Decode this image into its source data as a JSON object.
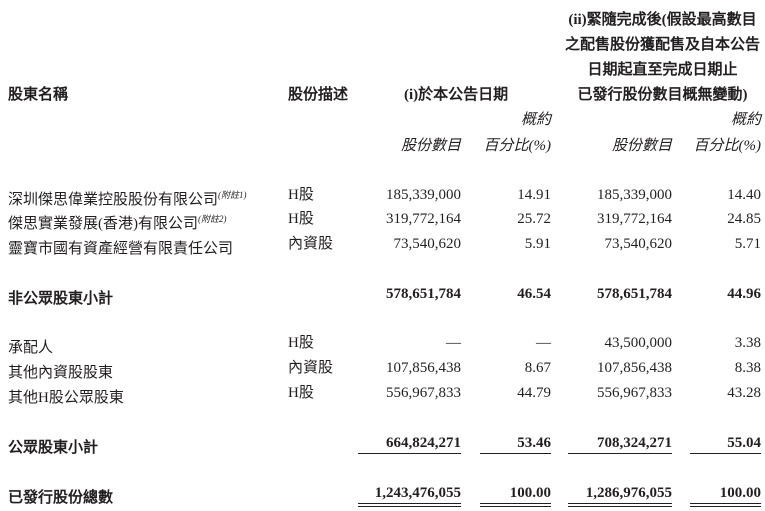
{
  "header": {
    "col_name": "股東名稱",
    "col_type": "股份描述",
    "group_i": "(i)於本公告日期",
    "group_ii_lines": [
      "(ii)緊隨完成後(假設最高數目",
      "之配售股份獲配售及自本公告",
      "日期起直至完成日期止",
      "已發行股份數目概無變動)"
    ],
    "approx": "概約",
    "shares": "股份數目",
    "percent": "百分比(%)"
  },
  "rows": [
    {
      "name": "深圳傑思偉業控股股份有限公司",
      "note": "(附註1)",
      "type": "H股",
      "shares_i": "185,339,000",
      "pct_i": "14.91",
      "shares_ii": "185,339,000",
      "pct_ii": "14.40"
    },
    {
      "name": "傑思實業發展(香港)有限公司",
      "note": "(附註2)",
      "type": "H股",
      "shares_i": "319,772,164",
      "pct_i": "25.72",
      "shares_ii": "319,772,164",
      "pct_ii": "24.85"
    },
    {
      "name": "靈寶市國有資產經營有限責任公司",
      "note": "",
      "type": "內資股",
      "shares_i": "73,540,620",
      "pct_i": "5.91",
      "shares_ii": "73,540,620",
      "pct_ii": "5.71"
    },
    {
      "name": "非公眾股東小計",
      "note": "",
      "type": "",
      "shares_i": "578,651,784",
      "pct_i": "46.54",
      "shares_ii": "578,651,784",
      "pct_ii": "44.96"
    },
    {
      "name": "承配人",
      "note": "",
      "type": "H股",
      "shares_i": "—",
      "pct_i": "—",
      "shares_ii": "43,500,000",
      "pct_ii": "3.38"
    },
    {
      "name": "其他內資股股東",
      "note": "",
      "type": "內資股",
      "shares_i": "107,856,438",
      "pct_i": "8.67",
      "shares_ii": "107,856,438",
      "pct_ii": "8.38"
    },
    {
      "name": "其他H股公眾股東",
      "note": "",
      "type": "H股",
      "shares_i": "556,967,833",
      "pct_i": "44.79",
      "shares_ii": "556,967,833",
      "pct_ii": "43.28"
    },
    {
      "name": "公眾股東小計",
      "note": "",
      "type": "",
      "shares_i": "664,824,271",
      "pct_i": "53.46",
      "shares_ii": "708,324,271",
      "pct_ii": "55.04"
    },
    {
      "name": "已發行股份總數",
      "note": "",
      "type": "",
      "shares_i": "1,243,476,055",
      "pct_i": "100.00",
      "shares_ii": "1,286,976,055",
      "pct_ii": "100.00"
    }
  ]
}
